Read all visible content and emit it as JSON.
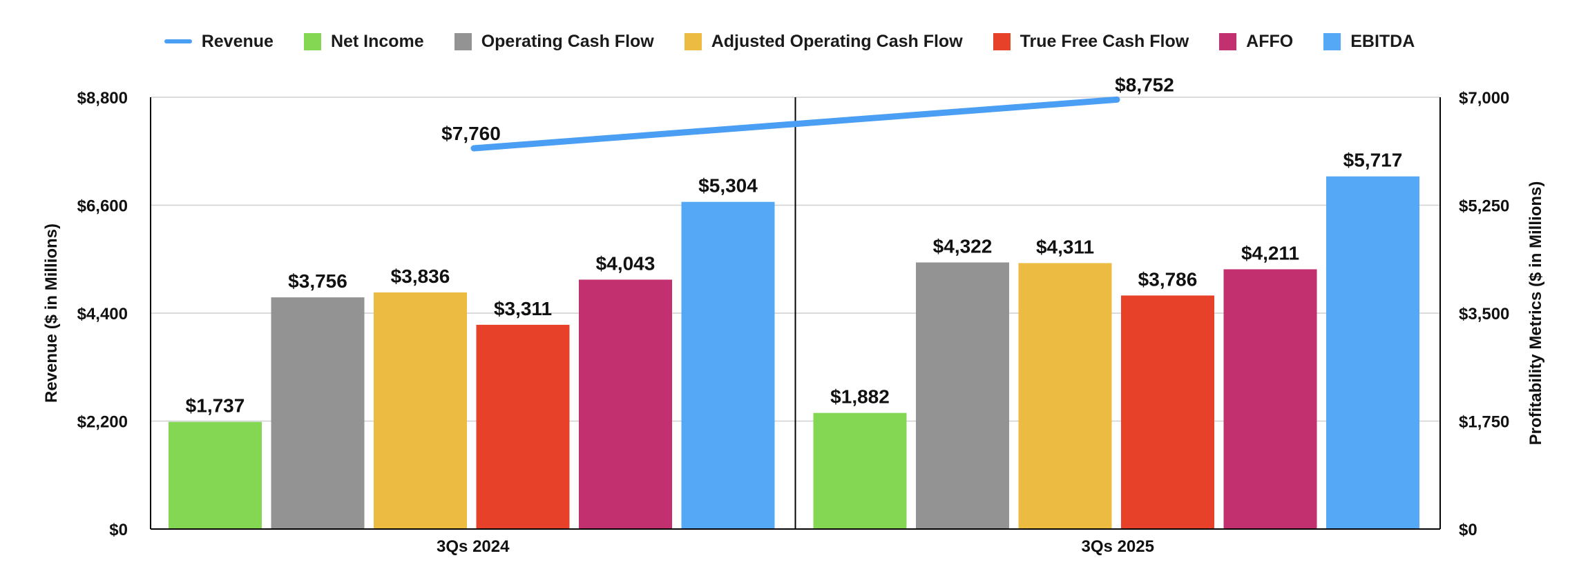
{
  "chart_data": {
    "type": "bar",
    "categories": [
      "3Qs 2024",
      "3Qs 2025"
    ],
    "legend_position": "top-center",
    "grid": true,
    "bar_axis": {
      "label": "Profitability Metrics ($ in Millions)",
      "range": [
        0,
        7000
      ],
      "ticks": [
        "$0",
        "$1,750",
        "$3,500",
        "$5,250",
        "$7,000"
      ]
    },
    "line_axis": {
      "label": "Revenue ($ in Millions)",
      "range": [
        0,
        8800
      ],
      "ticks": [
        "$0",
        "$2,200",
        "$4,400",
        "$6,600",
        "$8,800"
      ]
    },
    "line_series": {
      "name": "Revenue",
      "color": "#4a9ff5",
      "values": [
        7760,
        8752
      ],
      "labels": [
        "$7,760",
        "$8,752"
      ]
    },
    "series": [
      {
        "name": "Net Income",
        "color": "#83d752",
        "values": [
          1737,
          1882
        ],
        "labels": [
          "$1,737",
          "$1,882"
        ]
      },
      {
        "name": "Operating Cash Flow",
        "color": "#939393",
        "values": [
          3756,
          4322
        ],
        "labels": [
          "$3,756",
          "$4,322"
        ]
      },
      {
        "name": "Adjusted Operating Cash Flow",
        "color": "#ecbb41",
        "values": [
          3836,
          4311
        ],
        "labels": [
          "$3,836",
          "$4,311"
        ]
      },
      {
        "name": "True Free Cash Flow",
        "color": "#e8412a",
        "values": [
          3311,
          3786
        ],
        "labels": [
          "$3,311",
          "$3,786"
        ]
      },
      {
        "name": "AFFO",
        "color": "#c2306f",
        "values": [
          4043,
          4211
        ],
        "labels": [
          "$4,043",
          "$4,211"
        ]
      },
      {
        "name": "EBITDA",
        "color": "#54a8f6",
        "values": [
          5304,
          5717
        ],
        "labels": [
          "$5,304",
          "$5,717"
        ]
      }
    ]
  }
}
